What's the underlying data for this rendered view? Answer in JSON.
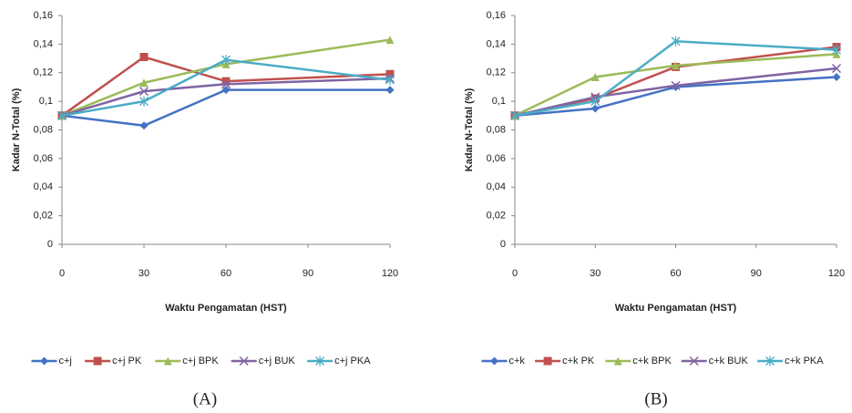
{
  "chart_data": [
    {
      "type": "line",
      "caption": "(A)",
      "ylabel": "Kadar N-Total (%)",
      "xlabel": "Waktu Pengamatan (HST)",
      "x": [
        0,
        30,
        60,
        120
      ],
      "xlim": [
        0,
        120
      ],
      "xticks": [
        0,
        30,
        60,
        90,
        120
      ],
      "ylim": [
        0,
        0.16
      ],
      "yticks": [
        0,
        {
          "value": 0.02,
          "label": "0,02"
        },
        {
          "value": 0.04,
          "label": "0,04"
        },
        {
          "value": 0.06,
          "label": "0,06"
        },
        {
          "value": 0.08,
          "label": "0,08"
        },
        {
          "value": 0.1,
          "label": "0,1"
        },
        {
          "value": 0.12,
          "label": "0,12"
        },
        {
          "value": 0.14,
          "label": "0,14"
        },
        {
          "value": 0.16,
          "label": "0,16"
        }
      ],
      "legend": "bottom",
      "series": [
        {
          "name": "c+j",
          "color": "#4472c4",
          "marker": "diamond",
          "values": [
            0.09,
            0.083,
            0.108,
            0.108
          ]
        },
        {
          "name": "c+j PK",
          "color": "#c0504d",
          "marker": "square",
          "values": [
            0.09,
            0.131,
            0.114,
            0.119
          ]
        },
        {
          "name": "c+j BPK",
          "color": "#9bbb59",
          "marker": "triangle",
          "values": [
            0.09,
            0.113,
            0.126,
            0.143
          ]
        },
        {
          "name": "c+j BUK",
          "color": "#8064a2",
          "marker": "x",
          "values": [
            0.09,
            0.107,
            0.112,
            0.116
          ]
        },
        {
          "name": "c+j PKA",
          "color": "#4bacc6",
          "marker": "star",
          "values": [
            0.09,
            0.1,
            0.129,
            0.115
          ]
        }
      ]
    },
    {
      "type": "line",
      "caption": "(B)",
      "ylabel": "Kadar N-Total (%)",
      "xlabel": "Waktu Pengamatan (HST)",
      "x": [
        0,
        30,
        60,
        120
      ],
      "xlim": [
        0,
        120
      ],
      "xticks": [
        0,
        30,
        60,
        90,
        120
      ],
      "ylim": [
        0,
        0.16
      ],
      "yticks": [
        0,
        {
          "value": 0.02,
          "label": "0,02"
        },
        {
          "value": 0.04,
          "label": "0,04"
        },
        {
          "value": 0.06,
          "label": "0,06"
        },
        {
          "value": 0.08,
          "label": "0,08"
        },
        {
          "value": 0.1,
          "label": "0,1"
        },
        {
          "value": 0.12,
          "label": "0,12"
        },
        {
          "value": 0.14,
          "label": "0,14"
        },
        {
          "value": 0.16,
          "label": "0,16"
        }
      ],
      "legend": "bottom",
      "series": [
        {
          "name": "c+k",
          "color": "#4472c4",
          "marker": "diamond",
          "values": [
            0.09,
            0.095,
            0.11,
            0.117
          ]
        },
        {
          "name": "c+k PK",
          "color": "#c0504d",
          "marker": "square",
          "values": [
            0.09,
            0.102,
            0.124,
            0.138
          ]
        },
        {
          "name": "c+k BPK",
          "color": "#9bbb59",
          "marker": "triangle",
          "values": [
            0.09,
            0.117,
            0.125,
            0.133
          ]
        },
        {
          "name": "c+k BUK",
          "color": "#8064a2",
          "marker": "x",
          "values": [
            0.09,
            0.103,
            0.111,
            0.123
          ]
        },
        {
          "name": "c+k PKA",
          "color": "#4bacc6",
          "marker": "star",
          "values": [
            0.09,
            0.1,
            0.142,
            0.136
          ]
        }
      ]
    }
  ]
}
